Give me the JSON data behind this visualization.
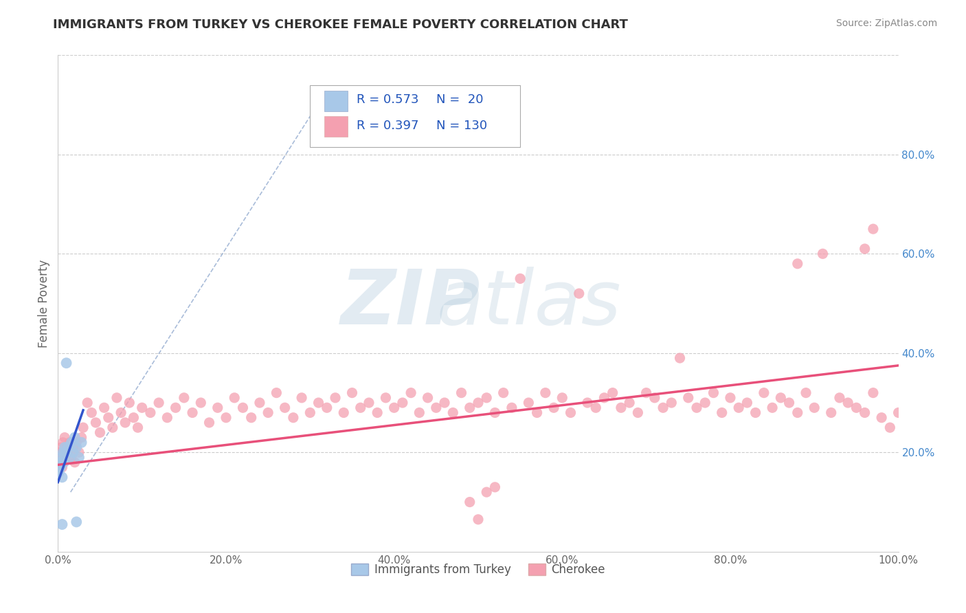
{
  "title": "IMMIGRANTS FROM TURKEY VS CHEROKEE FEMALE POVERTY CORRELATION CHART",
  "source": "Source: ZipAtlas.com",
  "ylabel": "Female Poverty",
  "legend_label_1": "Immigrants from Turkey",
  "legend_label_2": "Cherokee",
  "r1": 0.573,
  "n1": 20,
  "r2": 0.397,
  "n2": 130,
  "color_turkey": "#a8c8e8",
  "color_cherokee": "#f4a0b0",
  "trendline_turkey": "#3355cc",
  "trendline_cherokee": "#e8507a",
  "dashed_line_color": "#7090c0",
  "background_color": "#FFFFFF",
  "xlim": [
    0,
    1.0
  ],
  "ylim": [
    0,
    1.0
  ],
  "turkey_x": [
    0.001,
    0.002,
    0.003,
    0.004,
    0.005,
    0.006,
    0.007,
    0.008,
    0.009,
    0.01,
    0.012,
    0.014,
    0.016,
    0.018,
    0.02,
    0.022,
    0.025,
    0.028,
    0.005,
    0.022
  ],
  "turkey_y": [
    0.16,
    0.18,
    0.17,
    0.19,
    0.15,
    0.2,
    0.18,
    0.21,
    0.2,
    0.38,
    0.21,
    0.19,
    0.22,
    0.2,
    0.23,
    0.21,
    0.19,
    0.22,
    0.055,
    0.06
  ],
  "cherokee_x": [
    0.001,
    0.002,
    0.003,
    0.004,
    0.005,
    0.006,
    0.007,
    0.008,
    0.009,
    0.01,
    0.012,
    0.014,
    0.016,
    0.018,
    0.02,
    0.022,
    0.025,
    0.028,
    0.03,
    0.035,
    0.04,
    0.045,
    0.05,
    0.055,
    0.06,
    0.065,
    0.07,
    0.075,
    0.08,
    0.085,
    0.09,
    0.095,
    0.1,
    0.11,
    0.12,
    0.13,
    0.14,
    0.15,
    0.16,
    0.17,
    0.18,
    0.19,
    0.2,
    0.21,
    0.22,
    0.23,
    0.24,
    0.25,
    0.26,
    0.27,
    0.28,
    0.29,
    0.3,
    0.31,
    0.32,
    0.33,
    0.34,
    0.35,
    0.36,
    0.37,
    0.38,
    0.39,
    0.4,
    0.41,
    0.42,
    0.43,
    0.44,
    0.45,
    0.46,
    0.47,
    0.48,
    0.49,
    0.5,
    0.51,
    0.52,
    0.53,
    0.54,
    0.55,
    0.56,
    0.57,
    0.58,
    0.59,
    0.6,
    0.61,
    0.62,
    0.63,
    0.64,
    0.65,
    0.66,
    0.67,
    0.68,
    0.69,
    0.7,
    0.71,
    0.72,
    0.73,
    0.74,
    0.75,
    0.76,
    0.77,
    0.78,
    0.79,
    0.8,
    0.81,
    0.82,
    0.83,
    0.84,
    0.85,
    0.86,
    0.87,
    0.88,
    0.89,
    0.9,
    0.91,
    0.92,
    0.93,
    0.94,
    0.95,
    0.96,
    0.97,
    0.49,
    0.5,
    0.51,
    0.52,
    0.88,
    0.96,
    0.97,
    0.98,
    0.99,
    1.0
  ],
  "cherokee_y": [
    0.18,
    0.2,
    0.19,
    0.21,
    0.17,
    0.22,
    0.2,
    0.23,
    0.19,
    0.21,
    0.2,
    0.22,
    0.19,
    0.21,
    0.18,
    0.22,
    0.2,
    0.23,
    0.25,
    0.3,
    0.28,
    0.26,
    0.24,
    0.29,
    0.27,
    0.25,
    0.31,
    0.28,
    0.26,
    0.3,
    0.27,
    0.25,
    0.29,
    0.28,
    0.3,
    0.27,
    0.29,
    0.31,
    0.28,
    0.3,
    0.26,
    0.29,
    0.27,
    0.31,
    0.29,
    0.27,
    0.3,
    0.28,
    0.32,
    0.29,
    0.27,
    0.31,
    0.28,
    0.3,
    0.29,
    0.31,
    0.28,
    0.32,
    0.29,
    0.3,
    0.28,
    0.31,
    0.29,
    0.3,
    0.32,
    0.28,
    0.31,
    0.29,
    0.3,
    0.28,
    0.32,
    0.29,
    0.3,
    0.31,
    0.28,
    0.32,
    0.29,
    0.55,
    0.3,
    0.28,
    0.32,
    0.29,
    0.31,
    0.28,
    0.52,
    0.3,
    0.29,
    0.31,
    0.32,
    0.29,
    0.3,
    0.28,
    0.32,
    0.31,
    0.29,
    0.3,
    0.39,
    0.31,
    0.29,
    0.3,
    0.32,
    0.28,
    0.31,
    0.29,
    0.3,
    0.28,
    0.32,
    0.29,
    0.31,
    0.3,
    0.28,
    0.32,
    0.29,
    0.6,
    0.28,
    0.31,
    0.3,
    0.29,
    0.28,
    0.32,
    0.1,
    0.065,
    0.12,
    0.13,
    0.58,
    0.61,
    0.65,
    0.27,
    0.25,
    0.28
  ]
}
